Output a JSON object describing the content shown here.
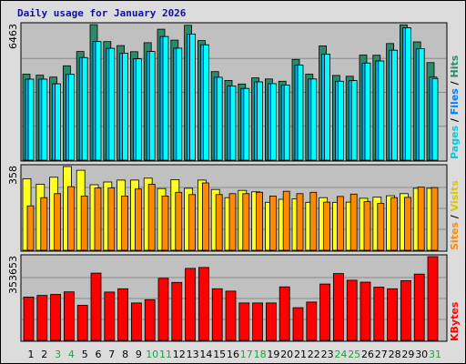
{
  "title": "Daily usage for January 2026",
  "colors": {
    "pages": "#00ffff",
    "hits": "#2a8a6a",
    "files": "#00b8ff",
    "visits": "#ffff20",
    "sites": "#ff8a00",
    "kbytes": "#ff0000",
    "weekend_label": "#20a040",
    "weekday_label": "#000000",
    "legend_pages": "#00ccdd",
    "legend_files": "#0080ff",
    "legend_hits": "#2a8a6a",
    "legend_sites": "#ff8a00",
    "legend_visits": "#d8c800",
    "legend_kbytes": "#ff0000"
  },
  "legends": {
    "pages": "Pages",
    "files": "Files",
    "hits": "Hits",
    "sites": "Sites",
    "visits": "Visits",
    "kbytes": "KBytes",
    "sep": " / "
  },
  "chart_data": [
    {
      "type": "bar",
      "panel": "hits-files-pages",
      "axis_max_label": "6463",
      "ylim": [
        0,
        6463
      ],
      "categories": [
        "1",
        "2",
        "3",
        "4",
        "5",
        "6",
        "7",
        "8",
        "9",
        "10",
        "11",
        "12",
        "13",
        "14",
        "15",
        "16",
        "17",
        "18",
        "19",
        "20",
        "21",
        "22",
        "23",
        "24",
        "25",
        "26",
        "27",
        "28",
        "29",
        "30",
        "31"
      ],
      "weekend_days": [
        "3",
        "4",
        "10",
        "11",
        "17",
        "18",
        "24",
        "25",
        "31"
      ],
      "series": [
        {
          "name": "Hits",
          "values": [
            4100,
            4050,
            3960,
            4500,
            5180,
            6460,
            5650,
            5460,
            5170,
            5600,
            6240,
            5720,
            6430,
            5700,
            4220,
            3800,
            3630,
            3920,
            3870,
            3760,
            4800,
            4100,
            5450,
            4040,
            4000,
            5010,
            5000,
            5560,
            6450,
            5640,
            4650
          ]
        },
        {
          "name": "Files",
          "values": [
            3860,
            3860,
            3640,
            4090,
            4890,
            5650,
            5330,
            5100,
            4830,
            5180,
            5890,
            5340,
            6010,
            5500,
            3950,
            3540,
            3420,
            3730,
            3650,
            3580,
            4530,
            3870,
            5050,
            3760,
            3790,
            4630,
            4730,
            5240,
            6310,
            5320,
            3960
          ]
        },
        {
          "name": "Pages",
          "values": [
            3860,
            3860,
            3640,
            4090,
            4890,
            5650,
            5330,
            5100,
            4830,
            5180,
            5890,
            5340,
            6010,
            5500,
            3950,
            3540,
            3420,
            3730,
            3650,
            3580,
            4530,
            3870,
            5050,
            3760,
            3790,
            4630,
            4730,
            5240,
            6310,
            5320,
            3890
          ]
        }
      ]
    },
    {
      "type": "bar",
      "panel": "visits-sites",
      "axis_max_label": "358",
      "ylim": [
        0,
        358
      ],
      "categories": [
        "1",
        "2",
        "3",
        "4",
        "5",
        "6",
        "7",
        "8",
        "9",
        "10",
        "11",
        "12",
        "13",
        "14",
        "15",
        "16",
        "17",
        "18",
        "19",
        "20",
        "21",
        "22",
        "23",
        "24",
        "25",
        "26",
        "27",
        "28",
        "29",
        "30",
        "31"
      ],
      "series": [
        {
          "name": "Visits",
          "values": [
            306,
            282,
            312,
            358,
            342,
            280,
            292,
            300,
            300,
            308,
            264,
            302,
            265,
            300,
            260,
            225,
            256,
            250,
            205,
            218,
            220,
            205,
            225,
            205,
            206,
            222,
            227,
            233,
            242,
            265,
            265
          ]
        },
        {
          "name": "Sites",
          "values": [
            190,
            225,
            242,
            272,
            232,
            266,
            266,
            232,
            262,
            282,
            232,
            248,
            238,
            288,
            238,
            242,
            242,
            248,
            232,
            252,
            242,
            248,
            206,
            230,
            240,
            208,
            200,
            225,
            226,
            270,
            268
          ]
        }
      ]
    },
    {
      "type": "bar",
      "panel": "kbytes",
      "axis_max_label": "353653",
      "ylim": [
        0,
        353653
      ],
      "categories": [
        "1",
        "2",
        "3",
        "4",
        "5",
        "6",
        "7",
        "8",
        "9",
        "10",
        "11",
        "12",
        "13",
        "14",
        "15",
        "16",
        "17",
        "18",
        "19",
        "20",
        "21",
        "22",
        "23",
        "24",
        "25",
        "26",
        "27",
        "28",
        "29",
        "30",
        "31"
      ],
      "series": [
        {
          "name": "KBytes",
          "values": [
            183000,
            190000,
            194000,
            205000,
            148000,
            284000,
            204000,
            218000,
            158000,
            172000,
            262000,
            245000,
            304000,
            308000,
            218000,
            208000,
            158000,
            158000,
            158000,
            226000,
            138000,
            162000,
            238000,
            282000,
            254000,
            246000,
            225000,
            218000,
            252000,
            280000,
            353653
          ]
        }
      ]
    }
  ]
}
